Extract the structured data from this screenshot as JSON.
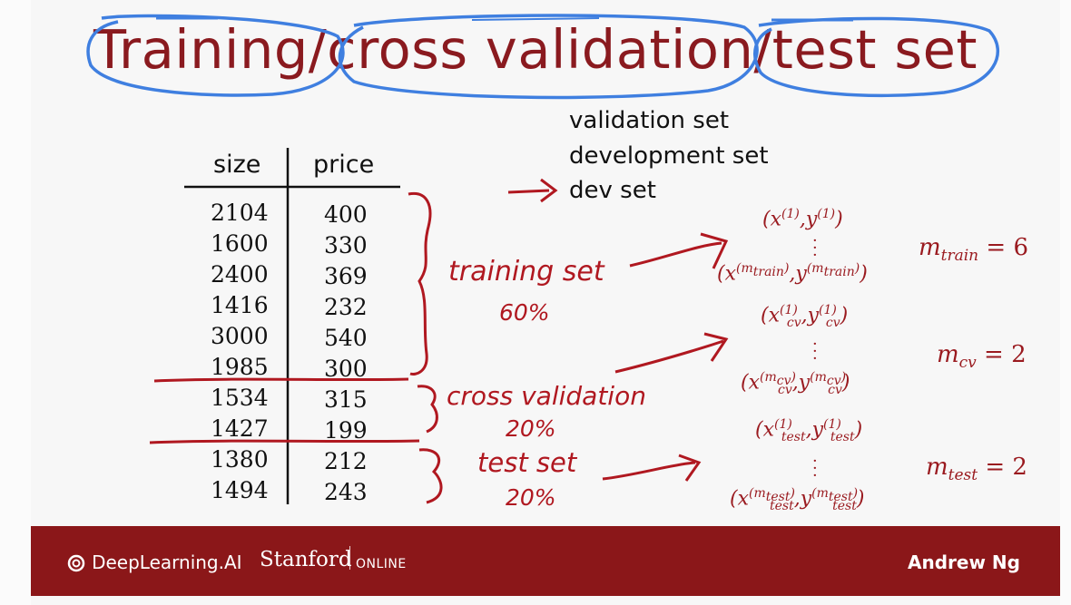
{
  "title": {
    "part1": "Training/",
    "part2": "cross validation/",
    "part3": "test set"
  },
  "table": {
    "headers": {
      "size": "size",
      "price": "price"
    },
    "rows": [
      {
        "size": "2104",
        "price": "400"
      },
      {
        "size": "1600",
        "price": "330"
      },
      {
        "size": "2400",
        "price": "369"
      },
      {
        "size": "1416",
        "price": "232"
      },
      {
        "size": "3000",
        "price": "540"
      },
      {
        "size": "1985",
        "price": "300"
      },
      {
        "size": "1534",
        "price": "315"
      },
      {
        "size": "1427",
        "price": "199"
      },
      {
        "size": "1380",
        "price": "212"
      },
      {
        "size": "1494",
        "price": "243"
      }
    ]
  },
  "synonyms": [
    "validation set",
    "development set",
    "dev set"
  ],
  "annotations": {
    "training_label": "training set",
    "training_pct": "60%",
    "cv_label": "cross validation",
    "cv_pct": "20%",
    "test_label": "test set",
    "test_pct": "20%"
  },
  "counts": {
    "m_train": "m",
    "m_train_sub": "train",
    "m_train_val": " = 6",
    "m_cv": "m",
    "m_cv_sub": "cv",
    "m_cv_val": " = 2",
    "m_test": "m",
    "m_test_sub": "test",
    "m_test_val": " = 2"
  },
  "footer": {
    "logo_text": "DeepLearning.AI",
    "stanford": "Stanford",
    "online": "ONLINE",
    "instructor": "Andrew Ng"
  },
  "colors": {
    "title": "#8a1a1f",
    "ink_blue": "#3f7fe0",
    "ink_red": "#b01820",
    "footer_bg": "#8b1719"
  }
}
